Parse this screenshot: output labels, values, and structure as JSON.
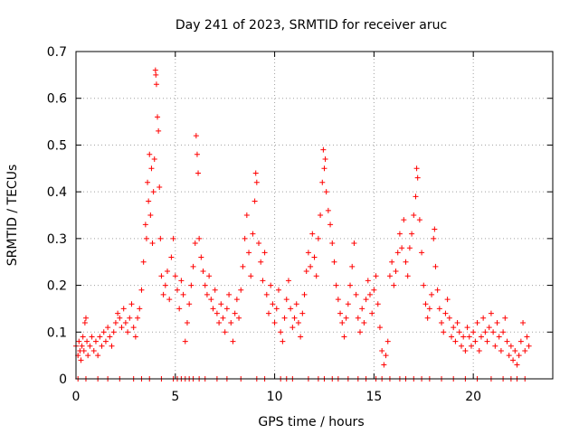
{
  "chart_data": {
    "type": "scatter",
    "title": "Day 241 of 2023, SRMTID for receiver aruc",
    "xlabel": "GPS time / hours",
    "ylabel": "SRMTID / TECUs",
    "xlim": [
      0,
      24
    ],
    "ylim": [
      0,
      0.7
    ],
    "xticks": [
      0,
      5,
      10,
      15,
      20
    ],
    "xtick_labels": [
      "0",
      "5",
      "10",
      "15",
      "20"
    ],
    "yticks": [
      0,
      0.1,
      0.2,
      0.3,
      0.4,
      0.5,
      0.6,
      0.7
    ],
    "ytick_labels": [
      "0",
      "0.1",
      "0.2",
      "0.3",
      "0.4",
      "0.5",
      "0.6",
      "0.7"
    ],
    "grid": true,
    "marker": "+",
    "series": [
      {
        "name": "SRMTID",
        "color": "#ff0000",
        "points": [
          [
            0.0,
            0.07
          ],
          [
            0.1,
            0.05
          ],
          [
            0.15,
            0.08
          ],
          [
            0.2,
            0.06
          ],
          [
            0.25,
            0.04
          ],
          [
            0.3,
            0.07
          ],
          [
            0.35,
            0.09
          ],
          [
            0.4,
            0.06
          ],
          [
            0.45,
            0.12
          ],
          [
            0.5,
            0.13
          ],
          [
            0.55,
            0.08
          ],
          [
            0.6,
            0.05
          ],
          [
            0.7,
            0.07
          ],
          [
            0.8,
            0.09
          ],
          [
            0.9,
            0.06
          ],
          [
            1.0,
            0.08
          ],
          [
            1.1,
            0.05
          ],
          [
            1.2,
            0.09
          ],
          [
            1.3,
            0.07
          ],
          [
            1.4,
            0.1
          ],
          [
            1.5,
            0.08
          ],
          [
            1.6,
            0.11
          ],
          [
            1.7,
            0.09
          ],
          [
            1.8,
            0.07
          ],
          [
            1.9,
            0.1
          ],
          [
            2.0,
            0.12
          ],
          [
            2.1,
            0.14
          ],
          [
            2.2,
            0.13
          ],
          [
            2.3,
            0.11
          ],
          [
            2.4,
            0.15
          ],
          [
            2.5,
            0.12
          ],
          [
            2.6,
            0.1
          ],
          [
            2.7,
            0.13
          ],
          [
            2.8,
            0.16
          ],
          [
            2.9,
            0.11
          ],
          [
            3.0,
            0.09
          ],
          [
            3.1,
            0.13
          ],
          [
            3.2,
            0.15
          ],
          [
            3.3,
            0.19
          ],
          [
            3.4,
            0.25
          ],
          [
            3.5,
            0.33
          ],
          [
            3.55,
            0.3
          ],
          [
            3.6,
            0.42
          ],
          [
            3.65,
            0.38
          ],
          [
            3.7,
            0.48
          ],
          [
            3.75,
            0.35
          ],
          [
            3.8,
            0.45
          ],
          [
            3.85,
            0.29
          ],
          [
            3.9,
            0.4
          ],
          [
            3.95,
            0.47
          ],
          [
            4.0,
            0.66
          ],
          [
            4.02,
            0.65
          ],
          [
            4.05,
            0.63
          ],
          [
            4.1,
            0.56
          ],
          [
            4.15,
            0.53
          ],
          [
            4.2,
            0.41
          ],
          [
            4.25,
            0.3
          ],
          [
            4.3,
            0.22
          ],
          [
            4.4,
            0.18
          ],
          [
            4.5,
            0.2
          ],
          [
            4.6,
            0.23
          ],
          [
            4.7,
            0.17
          ],
          [
            4.8,
            0.26
          ],
          [
            4.9,
            0.3
          ],
          [
            5.0,
            0.22
          ],
          [
            5.1,
            0.19
          ],
          [
            5.2,
            0.15
          ],
          [
            5.3,
            0.21
          ],
          [
            5.4,
            0.18
          ],
          [
            5.5,
            0.08
          ],
          [
            5.6,
            0.12
          ],
          [
            5.7,
            0.16
          ],
          [
            5.8,
            0.2
          ],
          [
            5.9,
            0.24
          ],
          [
            6.0,
            0.29
          ],
          [
            6.05,
            0.52
          ],
          [
            6.1,
            0.48
          ],
          [
            6.15,
            0.44
          ],
          [
            6.2,
            0.3
          ],
          [
            6.3,
            0.26
          ],
          [
            6.4,
            0.23
          ],
          [
            6.5,
            0.2
          ],
          [
            6.6,
            0.18
          ],
          [
            6.7,
            0.22
          ],
          [
            6.8,
            0.17
          ],
          [
            6.9,
            0.15
          ],
          [
            7.0,
            0.19
          ],
          [
            7.1,
            0.14
          ],
          [
            7.2,
            0.12
          ],
          [
            7.3,
            0.16
          ],
          [
            7.4,
            0.13
          ],
          [
            7.5,
            0.1
          ],
          [
            7.6,
            0.15
          ],
          [
            7.7,
            0.18
          ],
          [
            7.8,
            0.12
          ],
          [
            7.9,
            0.08
          ],
          [
            8.0,
            0.14
          ],
          [
            8.1,
            0.17
          ],
          [
            8.2,
            0.13
          ],
          [
            8.3,
            0.19
          ],
          [
            8.4,
            0.24
          ],
          [
            8.5,
            0.3
          ],
          [
            8.6,
            0.35
          ],
          [
            8.7,
            0.27
          ],
          [
            8.8,
            0.22
          ],
          [
            8.9,
            0.31
          ],
          [
            9.0,
            0.38
          ],
          [
            9.05,
            0.44
          ],
          [
            9.1,
            0.42
          ],
          [
            9.2,
            0.29
          ],
          [
            9.3,
            0.25
          ],
          [
            9.4,
            0.21
          ],
          [
            9.5,
            0.27
          ],
          [
            9.6,
            0.18
          ],
          [
            9.7,
            0.14
          ],
          [
            9.8,
            0.2
          ],
          [
            9.9,
            0.16
          ],
          [
            10.0,
            0.12
          ],
          [
            10.1,
            0.15
          ],
          [
            10.2,
            0.19
          ],
          [
            10.3,
            0.1
          ],
          [
            10.4,
            0.08
          ],
          [
            10.5,
            0.13
          ],
          [
            10.6,
            0.17
          ],
          [
            10.7,
            0.21
          ],
          [
            10.8,
            0.15
          ],
          [
            10.9,
            0.11
          ],
          [
            11.0,
            0.13
          ],
          [
            11.1,
            0.16
          ],
          [
            11.2,
            0.12
          ],
          [
            11.3,
            0.09
          ],
          [
            11.4,
            0.14
          ],
          [
            11.5,
            0.18
          ],
          [
            11.6,
            0.23
          ],
          [
            11.7,
            0.27
          ],
          [
            11.8,
            0.24
          ],
          [
            11.9,
            0.31
          ],
          [
            12.0,
            0.26
          ],
          [
            12.1,
            0.22
          ],
          [
            12.2,
            0.3
          ],
          [
            12.3,
            0.35
          ],
          [
            12.4,
            0.42
          ],
          [
            12.45,
            0.49
          ],
          [
            12.5,
            0.45
          ],
          [
            12.55,
            0.47
          ],
          [
            12.6,
            0.4
          ],
          [
            12.7,
            0.36
          ],
          [
            12.8,
            0.33
          ],
          [
            12.9,
            0.29
          ],
          [
            13.0,
            0.25
          ],
          [
            13.1,
            0.2
          ],
          [
            13.2,
            0.17
          ],
          [
            13.3,
            0.14
          ],
          [
            13.4,
            0.12
          ],
          [
            13.5,
            0.09
          ],
          [
            13.6,
            0.13
          ],
          [
            13.7,
            0.16
          ],
          [
            13.8,
            0.2
          ],
          [
            13.9,
            0.24
          ],
          [
            14.0,
            0.29
          ],
          [
            14.1,
            0.18
          ],
          [
            14.2,
            0.13
          ],
          [
            14.3,
            0.1
          ],
          [
            14.4,
            0.15
          ],
          [
            14.5,
            0.12
          ],
          [
            14.6,
            0.17
          ],
          [
            14.7,
            0.21
          ],
          [
            14.8,
            0.18
          ],
          [
            14.9,
            0.14
          ],
          [
            15.0,
            0.19
          ],
          [
            15.1,
            0.22
          ],
          [
            15.2,
            0.16
          ],
          [
            15.3,
            0.11
          ],
          [
            15.4,
            0.06
          ],
          [
            15.5,
            0.03
          ],
          [
            15.6,
            0.05
          ],
          [
            15.7,
            0.08
          ],
          [
            15.8,
            0.22
          ],
          [
            15.9,
            0.25
          ],
          [
            16.0,
            0.2
          ],
          [
            16.1,
            0.23
          ],
          [
            16.2,
            0.27
          ],
          [
            16.3,
            0.31
          ],
          [
            16.4,
            0.28
          ],
          [
            16.5,
            0.34
          ],
          [
            16.6,
            0.25
          ],
          [
            16.7,
            0.22
          ],
          [
            16.8,
            0.28
          ],
          [
            16.9,
            0.31
          ],
          [
            17.0,
            0.35
          ],
          [
            17.1,
            0.39
          ],
          [
            17.15,
            0.45
          ],
          [
            17.2,
            0.43
          ],
          [
            17.3,
            0.34
          ],
          [
            17.4,
            0.27
          ],
          [
            17.5,
            0.2
          ],
          [
            17.6,
            0.16
          ],
          [
            17.7,
            0.13
          ],
          [
            17.8,
            0.15
          ],
          [
            17.9,
            0.18
          ],
          [
            18.0,
            0.3
          ],
          [
            18.05,
            0.32
          ],
          [
            18.1,
            0.24
          ],
          [
            18.2,
            0.19
          ],
          [
            18.3,
            0.15
          ],
          [
            18.4,
            0.12
          ],
          [
            18.5,
            0.1
          ],
          [
            18.6,
            0.14
          ],
          [
            18.7,
            0.17
          ],
          [
            18.8,
            0.13
          ],
          [
            18.9,
            0.09
          ],
          [
            19.0,
            0.11
          ],
          [
            19.1,
            0.08
          ],
          [
            19.2,
            0.12
          ],
          [
            19.3,
            0.1
          ],
          [
            19.4,
            0.07
          ],
          [
            19.5,
            0.09
          ],
          [
            19.6,
            0.06
          ],
          [
            19.7,
            0.11
          ],
          [
            19.8,
            0.09
          ],
          [
            19.9,
            0.07
          ],
          [
            20.0,
            0.1
          ],
          [
            20.1,
            0.08
          ],
          [
            20.2,
            0.12
          ],
          [
            20.3,
            0.06
          ],
          [
            20.4,
            0.09
          ],
          [
            20.5,
            0.13
          ],
          [
            20.6,
            0.1
          ],
          [
            20.7,
            0.08
          ],
          [
            20.8,
            0.11
          ],
          [
            20.9,
            0.14
          ],
          [
            21.0,
            0.1
          ],
          [
            21.1,
            0.07
          ],
          [
            21.2,
            0.12
          ],
          [
            21.3,
            0.09
          ],
          [
            21.4,
            0.06
          ],
          [
            21.5,
            0.1
          ],
          [
            21.6,
            0.13
          ],
          [
            21.7,
            0.08
          ],
          [
            21.8,
            0.05
          ],
          [
            21.9,
            0.07
          ],
          [
            22.0,
            0.04
          ],
          [
            22.1,
            0.06
          ],
          [
            22.2,
            0.03
          ],
          [
            22.3,
            0.05
          ],
          [
            22.4,
            0.08
          ],
          [
            22.5,
            0.12
          ],
          [
            22.6,
            0.06
          ],
          [
            22.7,
            0.09
          ],
          [
            22.8,
            0.07
          ]
        ],
        "zero_markers": [
          0.1,
          0.5,
          1.1,
          1.6,
          2.2,
          2.9,
          3.3,
          3.7,
          4.3,
          4.9,
          5.1,
          5.3,
          5.5,
          5.7,
          5.9,
          6.2,
          6.5,
          7.1,
          7.6,
          8.3,
          9.1,
          9.5,
          10.3,
          10.6,
          10.9,
          11.7,
          12.2,
          12.5,
          12.9,
          13.2,
          13.7,
          14.2,
          14.6,
          15.1,
          15.4,
          15.8,
          16.3,
          16.6,
          17.0,
          17.4,
          17.8,
          18.4,
          19.0,
          19.6,
          20.2,
          20.9,
          21.5,
          21.9,
          22.2,
          22.6
        ]
      }
    ]
  }
}
